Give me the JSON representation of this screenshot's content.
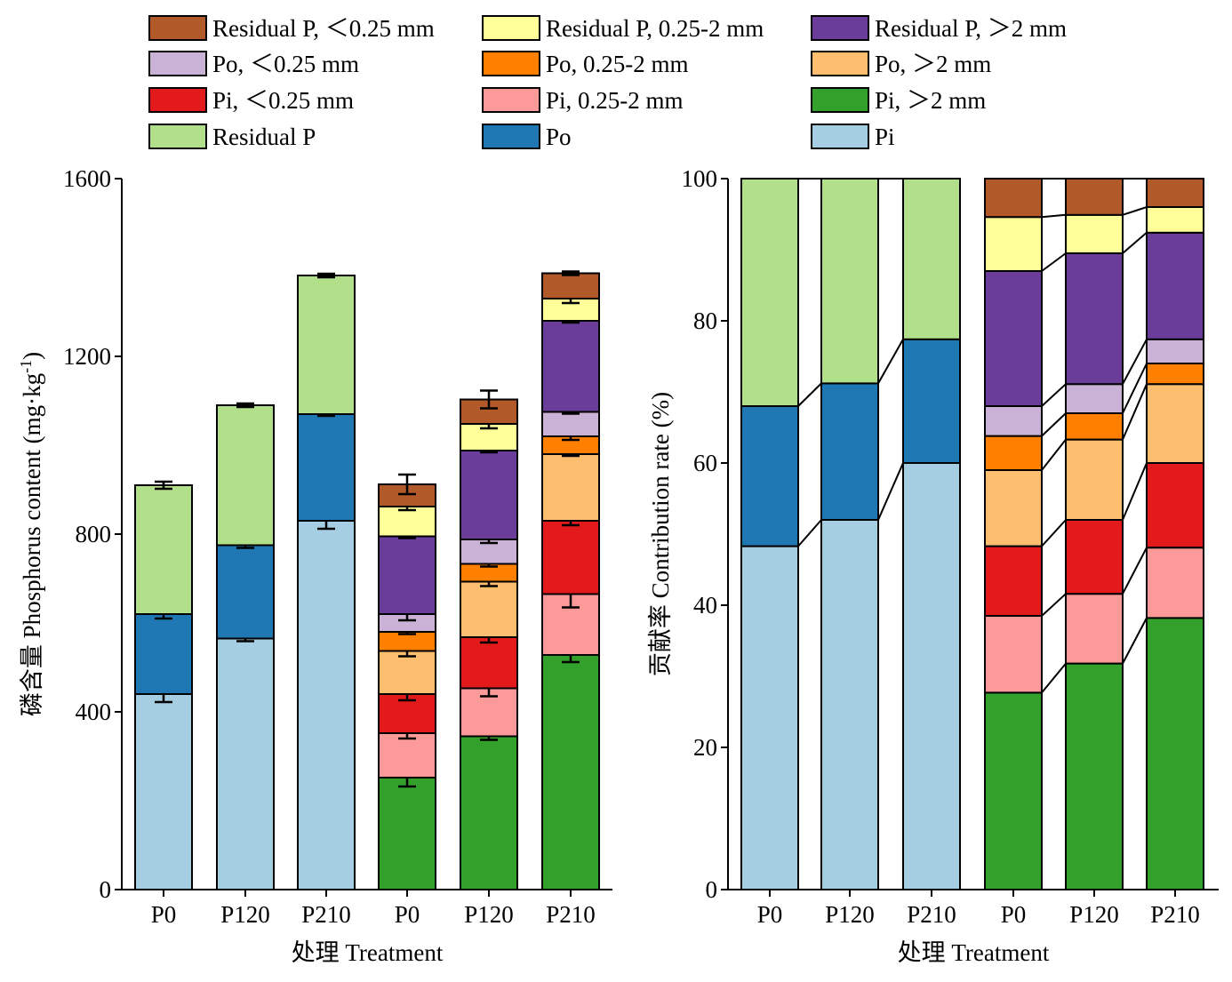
{
  "legend": [
    {
      "label": "Residual P, ＜0.25 mm",
      "color": "#b15928"
    },
    {
      "label": "Residual P, 0.25-2 mm",
      "color": "#ffff99"
    },
    {
      "label": "Residual P, ＞2 mm",
      "color": "#6a3d9a"
    },
    {
      "label": "Po, ＜0.25 mm",
      "color": "#cab2d6"
    },
    {
      "label": "Po, 0.25-2 mm",
      "color": "#ff7f00"
    },
    {
      "label": "Po, ＞2 mm",
      "color": "#fdbf6f"
    },
    {
      "label": "Pi, ＜0.25 mm",
      "color": "#e31a1c"
    },
    {
      "label": "Pi, 0.25-2 mm",
      "color": "#fb9a99"
    },
    {
      "label": "Pi, ＞2 mm",
      "color": "#33a02c"
    },
    {
      "label": "Residual P",
      "color": "#b2df8a"
    },
    {
      "label": "Po",
      "color": "#1f78b4"
    },
    {
      "label": "Pi",
      "color": "#a6cee3"
    }
  ],
  "chart_data": [
    {
      "type": "bar",
      "stacked": true,
      "xlabel": "处理 Treatment",
      "ylabel": "磷含量 Phosphorus content (mg·kg",
      "ylabel_sup": "-1",
      "ylabel_tail": ")",
      "ylim": [
        0,
        1600
      ],
      "yticks": [
        0,
        400,
        800,
        1200,
        1600
      ],
      "categories": [
        "P0",
        "P120",
        "P210",
        "P0",
        "P120",
        "P210"
      ],
      "series": [
        {
          "name": "Pi",
          "values": [
            440,
            565,
            830,
            0,
            0,
            0
          ],
          "errors": [
            18,
            6,
            18,
            0,
            0,
            0
          ]
        },
        {
          "name": "Po",
          "values": [
            180,
            210,
            240,
            0,
            0,
            0
          ],
          "errors": [
            10,
            6,
            4,
            0,
            0,
            0
          ]
        },
        {
          "name": "Residual P",
          "values": [
            290,
            315,
            312,
            0,
            0,
            0
          ],
          "errors": [
            8,
            4,
            4,
            0,
            0,
            0
          ]
        },
        {
          "name": "Pi, ＞2 mm",
          "values": [
            0,
            0,
            0,
            252,
            345,
            528
          ],
          "errors": [
            0,
            0,
            0,
            20,
            8,
            16
          ]
        },
        {
          "name": "Pi, 0.25-2 mm",
          "values": [
            0,
            0,
            0,
            100,
            108,
            137
          ],
          "errors": [
            0,
            0,
            0,
            12,
            18,
            30
          ]
        },
        {
          "name": "Pi, ＜0.25 mm",
          "values": [
            0,
            0,
            0,
            88,
            115,
            165
          ],
          "errors": [
            0,
            0,
            0,
            14,
            12,
            10
          ]
        },
        {
          "name": "Po, ＞2 mm",
          "values": [
            0,
            0,
            0,
            97,
            125,
            150
          ],
          "errors": [
            0,
            0,
            0,
            12,
            10,
            4
          ]
        },
        {
          "name": "Po, 0.25-2 mm",
          "values": [
            0,
            0,
            0,
            43,
            40,
            40
          ],
          "errors": [
            0,
            0,
            0,
            5,
            6,
            8
          ]
        },
        {
          "name": "Po, ＜0.25 mm",
          "values": [
            0,
            0,
            0,
            40,
            55,
            55
          ],
          "errors": [
            0,
            0,
            0,
            14,
            8,
            4
          ]
        },
        {
          "name": "Residual P, ＞2 mm",
          "values": [
            0,
            0,
            0,
            175,
            200,
            205
          ],
          "errors": [
            0,
            0,
            0,
            4,
            4,
            4
          ]
        },
        {
          "name": "Residual P, 0.25-2 mm",
          "values": [
            0,
            0,
            0,
            67,
            60,
            50
          ],
          "errors": [
            0,
            0,
            0,
            8,
            10,
            10
          ]
        },
        {
          "name": "Residual P, ＜0.25 mm",
          "values": [
            0,
            0,
            0,
            50,
            55,
            57
          ],
          "errors": [
            0,
            0,
            0,
            22,
            20,
            4
          ]
        }
      ]
    },
    {
      "type": "bar",
      "stacked": true,
      "percent": true,
      "xlabel": "处理 Treatment",
      "ylabel": "贡献率 Contribution rate (%)",
      "ylim": [
        0,
        100
      ],
      "yticks": [
        0,
        20,
        40,
        60,
        80,
        100
      ],
      "categories": [
        "P0",
        "P120",
        "P210",
        "P0",
        "P120",
        "P210"
      ],
      "series": [
        {
          "name": "Pi",
          "values": [
            48.3,
            52,
            60,
            0,
            0,
            0
          ]
        },
        {
          "name": "Po",
          "values": [
            19.7,
            19.2,
            17.4,
            0,
            0,
            0
          ]
        },
        {
          "name": "Residual P",
          "values": [
            32,
            28.8,
            22.6,
            0,
            0,
            0
          ]
        },
        {
          "name": "Pi, ＞2 mm",
          "values": [
            0,
            0,
            0,
            27.7,
            31.8,
            38.2
          ]
        },
        {
          "name": "Pi, 0.25-2 mm",
          "values": [
            0,
            0,
            0,
            10.8,
            9.8,
            9.9
          ]
        },
        {
          "name": "Pi, ＜0.25 mm",
          "values": [
            0,
            0,
            0,
            9.8,
            10.4,
            11.9
          ]
        },
        {
          "name": "Po, ＞2 mm",
          "values": [
            0,
            0,
            0,
            10.7,
            11.3,
            11.1
          ]
        },
        {
          "name": "Po, 0.25-2 mm",
          "values": [
            0,
            0,
            0,
            4.8,
            3.7,
            2.9
          ]
        },
        {
          "name": "Po, ＜0.25 mm",
          "values": [
            0,
            0,
            0,
            4.2,
            4.1,
            3.4
          ]
        },
        {
          "name": "Residual P, ＞2 mm",
          "values": [
            0,
            0,
            0,
            19,
            18.4,
            15
          ]
        },
        {
          "name": "Residual P, 0.25-2 mm",
          "values": [
            0,
            0,
            0,
            7.6,
            5.4,
            3.6
          ]
        },
        {
          "name": "Residual P, ＜0.25 mm",
          "values": [
            0,
            0,
            0,
            5.4,
            5.1,
            4
          ]
        }
      ]
    }
  ]
}
